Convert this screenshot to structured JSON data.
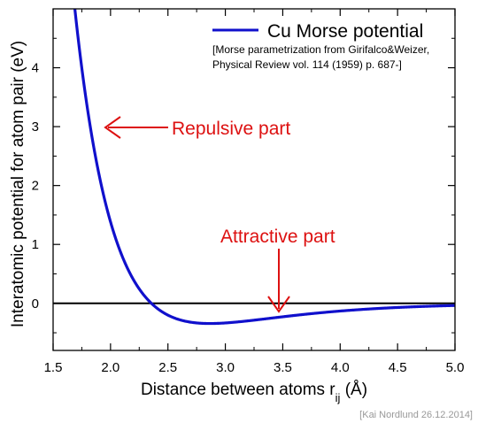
{
  "chart_data": {
    "type": "line",
    "xlabel_main": "Distance between atoms r",
    "xlabel_sub": "ij",
    "xlabel_unit": " (Å)",
    "ylabel": "Interatomic potential for atom pair (eV)",
    "xlim": [
      1.5,
      5.0
    ],
    "ylim": [
      -0.8,
      5.0
    ],
    "x_ticks": [
      1.5,
      2.0,
      2.5,
      3.0,
      3.5,
      4.0,
      4.5,
      5.0
    ],
    "x_tick_labels": [
      "1.5",
      "2.0",
      "2.5",
      "3.0",
      "3.5",
      "4.0",
      "4.5",
      "5.0"
    ],
    "y_ticks": [
      0,
      1,
      2,
      3,
      4
    ],
    "y_tick_labels": [
      "0",
      "1",
      "2",
      "3",
      "4"
    ],
    "grid": false,
    "zero_line": true,
    "series": [
      {
        "name": "Cu Morse potential",
        "color": "#1010cc",
        "model": "morse",
        "params": {
          "D": 0.3429,
          "alpha": 1.3588,
          "r0": 2.866
        },
        "x": [
          1.7,
          1.8,
          1.9,
          2.0,
          2.1,
          2.2,
          2.3,
          2.4,
          2.5,
          2.6,
          2.7,
          2.8,
          2.866,
          3.0,
          3.2,
          3.4,
          3.6,
          3.8,
          4.0,
          4.3,
          4.6,
          5.0
        ],
        "y": [
          4.92,
          3.61,
          2.59,
          1.8,
          1.18,
          0.71,
          0.35,
          0.08,
          -0.12,
          -0.25,
          -0.32,
          -0.34,
          -0.343,
          -0.33,
          -0.28,
          -0.23,
          -0.17,
          -0.13,
          -0.1,
          -0.06,
          -0.04,
          -0.02
        ]
      }
    ],
    "legend": {
      "position": "top-right",
      "citation_line1": "[Morse parametrization from Girifalco&Weizer,",
      "citation_line2": "Physical Review vol. 114 (1959) p. 687-]"
    },
    "annotations": [
      {
        "text": "Repulsive part",
        "color": "#dd1111",
        "arrow": "left",
        "x": 1.9,
        "y": 3.0
      },
      {
        "text": "Attractive part",
        "color": "#dd1111",
        "arrow": "down",
        "x": 3.45,
        "y": -0.15
      }
    ],
    "credit": "[Kai Nordlund 26.12.2014]"
  }
}
